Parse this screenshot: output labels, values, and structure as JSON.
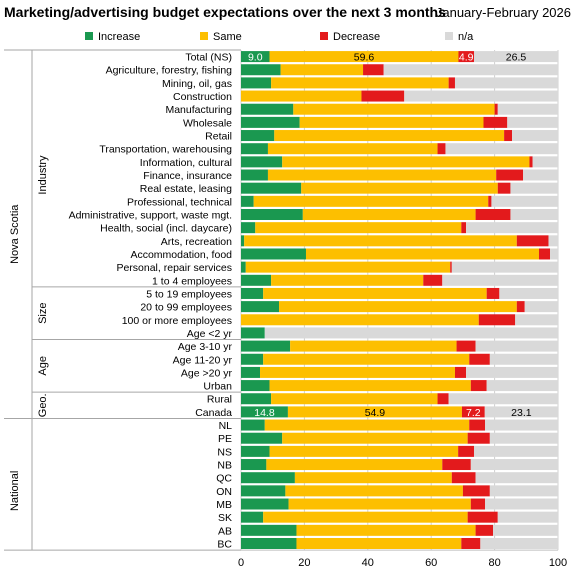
{
  "chart_data": {
    "type": "bar",
    "orientation": "horizontal",
    "stacked": true,
    "title": "Marketing/advertising budget expectations over the next 3 months",
    "subtitle": "January-February 2026",
    "xlim": [
      0,
      100
    ],
    "xticks": [
      0,
      20,
      40,
      60,
      80,
      100
    ],
    "grid": true,
    "legend_position": "top",
    "series": [
      {
        "name": "Increase",
        "color": "#1a9850"
      },
      {
        "name": "Same",
        "color": "#fdbf00"
      },
      {
        "name": "Decrease",
        "color": "#e31a1c"
      },
      {
        "name": "n/a",
        "color": "#d9d9d9"
      }
    ],
    "groups": [
      {
        "outer": "Nova Scotia",
        "inner": "",
        "rows": [
          0,
          0
        ]
      },
      {
        "outer": "Nova Scotia",
        "inner": "Industry",
        "rows": [
          1,
          17
        ]
      },
      {
        "outer": "Nova Scotia",
        "inner": "Size",
        "rows": [
          18,
          21
        ]
      },
      {
        "outer": "Nova Scotia",
        "inner": "Age",
        "rows": [
          22,
          25
        ]
      },
      {
        "outer": "Nova Scotia",
        "inner": "Geo.",
        "rows": [
          26,
          27
        ]
      },
      {
        "outer": "National",
        "inner": "",
        "rows": [
          28,
          38
        ]
      }
    ],
    "outer_labels": [
      {
        "label": "Nova Scotia",
        "rows": [
          0,
          27
        ]
      },
      {
        "label": "National",
        "rows": [
          28,
          38
        ]
      }
    ],
    "categories": [
      "Total (NS)",
      "Agriculture, forestry, fishing",
      "Mining, oil, gas",
      "Construction",
      "Manufacturing",
      "Wholesale",
      "Retail",
      "Transportation, warehousing",
      "Information, cultural",
      "Finance, insurance",
      "Real estate, leasing",
      "Professional, technical",
      "Administrative, support, waste mgt.",
      "Health, social (incl. daycare)",
      "Arts, recreation",
      "Accommodation, food",
      "Personal, repair services",
      "1 to 4 employees",
      "5 to 19 employees",
      "20 to 99 employees",
      "100 or more employees",
      "Age <2 yr",
      "Age 3-10 yr",
      "Age 11-20 yr",
      "Age >20 yr",
      "Urban",
      "Rural",
      "Canada",
      "NL",
      "PE",
      "NS",
      "NB",
      "QC",
      "ON",
      "MB",
      "SK",
      "AB",
      "BC"
    ],
    "values": [
      [
        9.0,
        59.6,
        4.9,
        26.5
      ],
      [
        12.5,
        26.0,
        6.5,
        55.0
      ],
      [
        9.5,
        56.0,
        2.0,
        32.5
      ],
      [
        0.0,
        38.0,
        13.5,
        48.5
      ],
      [
        16.5,
        63.5,
        1.0,
        19.0
      ],
      [
        18.5,
        58.0,
        7.5,
        16.0
      ],
      [
        10.5,
        72.5,
        2.5,
        14.5
      ],
      [
        8.5,
        53.5,
        2.5,
        35.5
      ],
      [
        13.0,
        78.0,
        1.0,
        8.0
      ],
      [
        8.5,
        72.0,
        8.5,
        11.0
      ],
      [
        19.0,
        62.0,
        4.0,
        15.0
      ],
      [
        4.0,
        74.0,
        1.0,
        21.0
      ],
      [
        19.5,
        54.5,
        11.0,
        15.0
      ],
      [
        4.5,
        65.0,
        1.5,
        29.0
      ],
      [
        1.0,
        86.0,
        10.0,
        3.0
      ],
      [
        20.5,
        73.5,
        3.5,
        2.5
      ],
      [
        1.5,
        64.5,
        0.5,
        33.5
      ],
      [
        9.5,
        48.0,
        6.0,
        36.5
      ],
      [
        7.0,
        70.5,
        4.0,
        18.5
      ],
      [
        12.0,
        75.0,
        2.5,
        10.5
      ],
      [
        0.0,
        75.0,
        11.5,
        13.5
      ],
      [
        7.5,
        0.0,
        0.0,
        92.5
      ],
      [
        15.5,
        52.5,
        6.0,
        26.0
      ],
      [
        7.0,
        65.0,
        6.5,
        21.5
      ],
      [
        6.0,
        61.5,
        3.5,
        29.0
      ],
      [
        9.0,
        63.5,
        5.0,
        22.5
      ],
      [
        9.5,
        52.5,
        3.5,
        34.5
      ],
      [
        14.8,
        54.9,
        7.2,
        23.1
      ],
      [
        7.5,
        64.5,
        5.0,
        23.0
      ],
      [
        13.0,
        58.5,
        7.0,
        21.5
      ],
      [
        9.0,
        59.5,
        5.0,
        26.5
      ],
      [
        8.0,
        55.5,
        9.0,
        27.5
      ],
      [
        17.0,
        49.5,
        7.5,
        26.0
      ],
      [
        14.0,
        56.0,
        8.5,
        21.5
      ],
      [
        15.0,
        57.5,
        4.5,
        23.0
      ],
      [
        7.0,
        64.5,
        9.5,
        19.0
      ],
      [
        17.5,
        56.5,
        5.5,
        20.5
      ],
      [
        17.5,
        52.0,
        6.0,
        24.5
      ]
    ],
    "data_labels": [
      {
        "row": 0,
        "values": [
          "9.0",
          "59.6",
          "4.9",
          "26.5"
        ]
      },
      {
        "row": 27,
        "values": [
          "14.8",
          "54.9",
          "7.2",
          "23.1"
        ]
      }
    ]
  }
}
